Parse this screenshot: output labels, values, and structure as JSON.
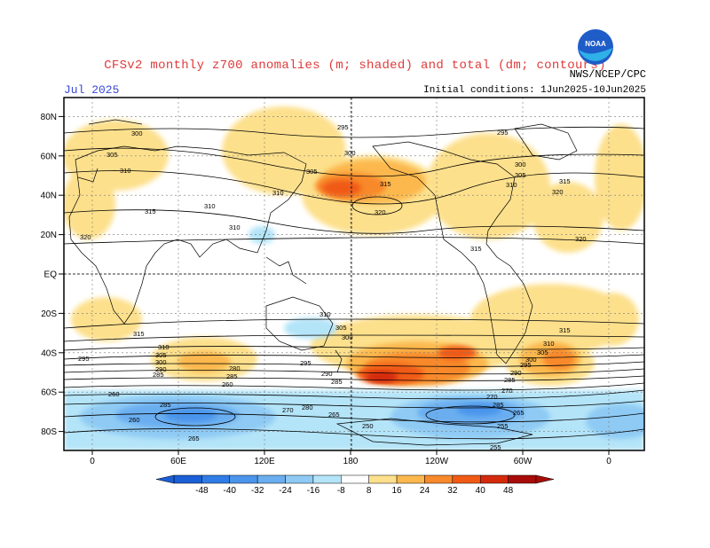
{
  "header": {
    "title": "CFSv2 monthly z700 anomalies (m; shaded) and total (dm; contours)",
    "month": "Jul 2025",
    "agency": "NWS/NCEP/CPC",
    "initial_conditions": "Initial conditions: 1Jun2025-10Jun2025",
    "logo_text": "NOAA"
  },
  "axes": {
    "lat_labels": [
      "80N",
      "60N",
      "40N",
      "20N",
      "EQ",
      "20S",
      "40S",
      "60S",
      "80S"
    ],
    "lon_labels": [
      "0",
      "60E",
      "120E",
      "180",
      "120W",
      "60W",
      "0"
    ]
  },
  "colorbar": {
    "ticks": [
      "-48",
      "-40",
      "-32",
      "-24",
      "-16",
      "-8",
      "8",
      "16",
      "24",
      "32",
      "40",
      "48"
    ],
    "colors": [
      "#1a5fd6",
      "#2f7ce6",
      "#4a94ec",
      "#6aaef0",
      "#8ecaf4",
      "#b4e4f8",
      "#ffffff",
      "#fde08c",
      "#fcb84e",
      "#f8892c",
      "#f05a14",
      "#d42a0c",
      "#a80c08"
    ]
  },
  "contour_labels": [
    {
      "text": "300"
    },
    {
      "text": "305"
    },
    {
      "text": "310"
    },
    {
      "text": "315"
    },
    {
      "text": "320"
    },
    {
      "text": "295"
    },
    {
      "text": "290"
    },
    {
      "text": "285"
    },
    {
      "text": "280"
    },
    {
      "text": "270"
    },
    {
      "text": "265"
    },
    {
      "text": "260"
    },
    {
      "text": "255"
    },
    {
      "text": "250"
    }
  ]
}
